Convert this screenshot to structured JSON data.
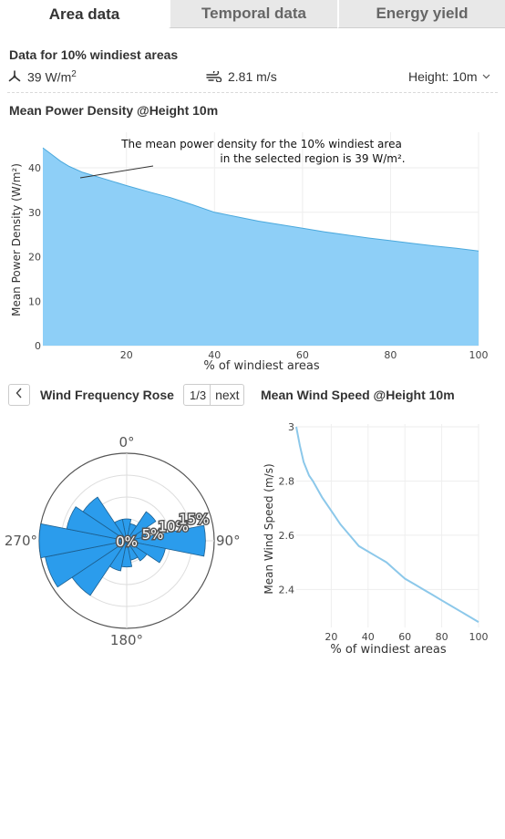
{
  "tabs": [
    {
      "label": "Area data",
      "active": true
    },
    {
      "label": "Temporal data",
      "active": false
    },
    {
      "label": "Energy yield",
      "active": false
    }
  ],
  "header": {
    "title": "Data for 10% windiest areas"
  },
  "stats": {
    "power_icon": "wind-turbine-icon",
    "power_value": "39 W/m",
    "power_sup": "2",
    "speed_icon": "wind-icon",
    "speed_value": "2.81 m/s",
    "height_label": "Height: 10m"
  },
  "power_chart": {
    "title": "Mean Power Density @Height 10m",
    "annotation_line1": "The mean power density for the 10% windiest area",
    "annotation_line2": "in the selected region is 39 W/m².",
    "ylabel": "Mean Power Density (W/m²)",
    "xlabel": "% of windiest areas"
  },
  "rose": {
    "title": "Wind Frequency Rose",
    "page": "1/3",
    "next_label": "next",
    "angle_labels": [
      "0°",
      "90°",
      "180°",
      "270°"
    ],
    "radial_labels": [
      "0%",
      "5%",
      "10%",
      "15%"
    ]
  },
  "speed_chart": {
    "title": "Mean Wind Speed @Height 10m",
    "ylabel": "Mean Wind Speed (m/s)",
    "xlabel": "% of windiest areas"
  },
  "colors": {
    "area_fill": "#8ecff7",
    "area_line": "#4aa8dc",
    "rose_fill": "#2b9cec",
    "speed_line": "#8cc8ea"
  },
  "chart_data": [
    {
      "type": "area",
      "title": "Mean Power Density @Height 10m",
      "xlabel": "% of windiest areas",
      "ylabel": "Mean Power Density (W/m²)",
      "xlim": [
        1,
        100
      ],
      "ylim": [
        0,
        48
      ],
      "xticks": [
        20,
        40,
        60,
        80,
        100
      ],
      "yticks": [
        0,
        10,
        20,
        30,
        40
      ],
      "x": [
        1,
        3,
        5,
        7,
        10,
        15,
        20,
        25,
        30,
        35,
        40,
        45,
        50,
        55,
        60,
        65,
        70,
        75,
        80,
        85,
        90,
        95,
        100
      ],
      "y": [
        44.5,
        43,
        41.5,
        40.3,
        39,
        37.5,
        36,
        34.6,
        33.3,
        31.7,
        30,
        29,
        28,
        27.2,
        26.4,
        25.6,
        24.9,
        24.2,
        23.6,
        23,
        22.4,
        21.9,
        21.3
      ],
      "grid": true
    },
    {
      "type": "bar",
      "subtype": "polar",
      "title": "Wind Frequency Rose",
      "angle_labels": [
        "0°",
        "90°",
        "180°",
        "270°"
      ],
      "radial_ticks": [
        0,
        5,
        10,
        15
      ],
      "radial_max": 20,
      "directions_deg": [
        0,
        22.5,
        45,
        67.5,
        90,
        112.5,
        135,
        157.5,
        180,
        202.5,
        225,
        247.5,
        270,
        292.5,
        315,
        337.5
      ],
      "values": [
        5,
        4,
        8,
        4.5,
        18,
        9,
        5.5,
        4.5,
        6,
        7,
        15,
        19,
        20,
        14,
        12,
        5
      ]
    },
    {
      "type": "line",
      "title": "Mean Wind Speed @Height 10m",
      "xlabel": "% of windiest areas",
      "ylabel": "Mean Wind Speed (m/s)",
      "xlim": [
        1,
        100
      ],
      "ylim": [
        2.26,
        3.01
      ],
      "xticks": [
        20,
        40,
        60,
        80,
        100
      ],
      "yticks": [
        2.4,
        2.6,
        2.8,
        3
      ],
      "x": [
        1,
        3,
        5,
        8,
        10,
        15,
        20,
        25,
        30,
        35,
        40,
        45,
        50,
        55,
        60,
        65,
        70,
        75,
        80,
        85,
        90,
        95,
        100
      ],
      "y": [
        3.0,
        2.93,
        2.87,
        2.82,
        2.8,
        2.74,
        2.69,
        2.64,
        2.6,
        2.56,
        2.54,
        2.52,
        2.5,
        2.47,
        2.44,
        2.42,
        2.4,
        2.38,
        2.36,
        2.34,
        2.32,
        2.3,
        2.28
      ],
      "grid": true
    }
  ]
}
